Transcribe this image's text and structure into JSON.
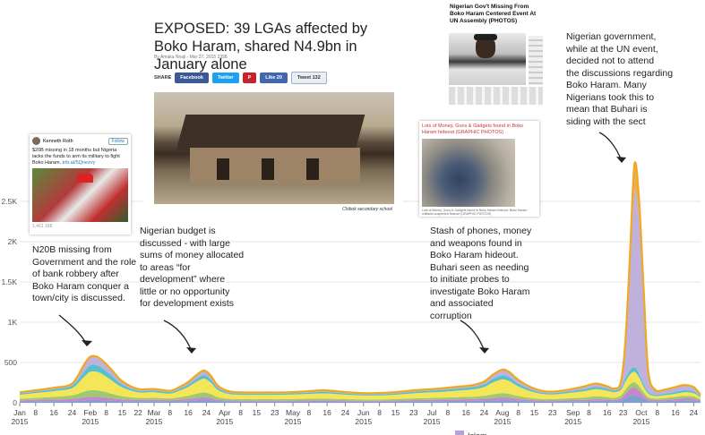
{
  "chart_data": {
    "type": "area",
    "stacked": true,
    "ylim": [
      0,
      3000
    ],
    "y_ticks": [
      {
        "value": 0,
        "label": "0"
      },
      {
        "value": 500,
        "label": "500"
      },
      {
        "value": 1000,
        "label": "1K"
      },
      {
        "value": 1500,
        "label": "1.5K"
      },
      {
        "value": 2000,
        "label": "2K"
      },
      {
        "value": 2500,
        "label": "2.5K"
      }
    ],
    "x_range": [
      "2015-01-01",
      "2015-10-27"
    ],
    "x_ticks": [
      {
        "date": "2015-01-01",
        "label": "Jan",
        "year": "2015"
      },
      {
        "date": "2015-01-08",
        "label": "8"
      },
      {
        "date": "2015-01-16",
        "label": "16"
      },
      {
        "date": "2015-01-24",
        "label": "24"
      },
      {
        "date": "2015-02-01",
        "label": "Feb",
        "year": "2015"
      },
      {
        "date": "2015-02-08",
        "label": "8"
      },
      {
        "date": "2015-02-15",
        "label": "15"
      },
      {
        "date": "2015-02-22",
        "label": "22"
      },
      {
        "date": "2015-03-01",
        "label": "Mar",
        "year": "2015"
      },
      {
        "date": "2015-03-08",
        "label": "8"
      },
      {
        "date": "2015-03-16",
        "label": "16"
      },
      {
        "date": "2015-03-24",
        "label": "24"
      },
      {
        "date": "2015-04-01",
        "label": "Apr",
        "year": "2015"
      },
      {
        "date": "2015-04-08",
        "label": "8"
      },
      {
        "date": "2015-04-15",
        "label": "15"
      },
      {
        "date": "2015-04-23",
        "label": "23"
      },
      {
        "date": "2015-05-01",
        "label": "May",
        "year": "2015"
      },
      {
        "date": "2015-05-08",
        "label": "8"
      },
      {
        "date": "2015-05-16",
        "label": "16"
      },
      {
        "date": "2015-05-24",
        "label": "24"
      },
      {
        "date": "2015-06-01",
        "label": "Jun",
        "year": "2015"
      },
      {
        "date": "2015-06-08",
        "label": "8"
      },
      {
        "date": "2015-06-15",
        "label": "15"
      },
      {
        "date": "2015-06-23",
        "label": "23"
      },
      {
        "date": "2015-07-01",
        "label": "Jul",
        "year": "2015"
      },
      {
        "date": "2015-07-08",
        "label": "8"
      },
      {
        "date": "2015-07-16",
        "label": "16"
      },
      {
        "date": "2015-07-24",
        "label": "24"
      },
      {
        "date": "2015-08-01",
        "label": "Aug",
        "year": "2015"
      },
      {
        "date": "2015-08-08",
        "label": "8"
      },
      {
        "date": "2015-08-15",
        "label": "15"
      },
      {
        "date": "2015-08-23",
        "label": "23"
      },
      {
        "date": "2015-09-01",
        "label": "Sep",
        "year": "2015"
      },
      {
        "date": "2015-09-08",
        "label": "8"
      },
      {
        "date": "2015-09-16",
        "label": "16"
      },
      {
        "date": "2015-09-23",
        "label": "23"
      },
      {
        "date": "2015-10-01",
        "label": "Oct",
        "year": "2015"
      },
      {
        "date": "2015-10-08",
        "label": "8"
      },
      {
        "date": "2015-10-16",
        "label": "16"
      },
      {
        "date": "2015-10-24",
        "label": "24"
      }
    ],
    "dates": [
      "2015-01-01",
      "2015-01-08",
      "2015-01-16",
      "2015-01-24",
      "2015-01-29",
      "2015-02-01",
      "2015-02-05",
      "2015-02-10",
      "2015-02-15",
      "2015-02-22",
      "2015-03-01",
      "2015-03-08",
      "2015-03-12",
      "2015-03-16",
      "2015-03-20",
      "2015-03-23",
      "2015-03-26",
      "2015-03-29",
      "2015-04-03",
      "2015-04-10",
      "2015-04-20",
      "2015-04-27",
      "2015-05-06",
      "2015-05-15",
      "2015-05-25",
      "2015-06-04",
      "2015-06-14",
      "2015-06-24",
      "2015-07-04",
      "2015-07-12",
      "2015-07-19",
      "2015-07-24",
      "2015-07-28",
      "2015-08-01",
      "2015-08-04",
      "2015-08-08",
      "2015-08-14",
      "2015-08-20",
      "2015-08-26",
      "2015-09-01",
      "2015-09-06",
      "2015-09-11",
      "2015-09-16",
      "2015-09-19",
      "2015-09-22",
      "2015-09-24",
      "2015-09-26",
      "2015-09-28",
      "2015-09-30",
      "2015-10-02",
      "2015-10-04",
      "2015-10-07",
      "2015-10-11",
      "2015-10-16",
      "2015-10-20",
      "2015-10-24",
      "2015-10-27"
    ],
    "series": [
      {
        "color": "#6b8ec7",
        "values": [
          15,
          18,
          20,
          22,
          30,
          35,
          34,
          25,
          20,
          18,
          18,
          16,
          20,
          25,
          32,
          36,
          30,
          20,
          15,
          14,
          14,
          14,
          15,
          16,
          14,
          13,
          14,
          18,
          20,
          22,
          24,
          26,
          30,
          34,
          32,
          25,
          18,
          15,
          16,
          18,
          20,
          25,
          22,
          20,
          30,
          60,
          90,
          100,
          80,
          50,
          25,
          18,
          20,
          25,
          30,
          28,
          15
        ]
      },
      {
        "color": "#c06fc5",
        "values": [
          15,
          18,
          20,
          25,
          35,
          40,
          38,
          30,
          22,
          18,
          18,
          16,
          18,
          22,
          28,
          30,
          26,
          18,
          14,
          12,
          12,
          12,
          13,
          14,
          12,
          11,
          12,
          15,
          18,
          20,
          22,
          25,
          30,
          34,
          30,
          22,
          15,
          12,
          13,
          15,
          16,
          20,
          18,
          16,
          25,
          50,
          80,
          90,
          70,
          40,
          20,
          15,
          16,
          20,
          25,
          22,
          12
        ]
      },
      {
        "color": "#8dbf5a",
        "values": [
          20,
          25,
          35,
          45,
          70,
          80,
          78,
          60,
          40,
          25,
          25,
          22,
          30,
          40,
          55,
          62,
          52,
          32,
          20,
          18,
          18,
          18,
          20,
          22,
          18,
          16,
          18,
          22,
          25,
          28,
          30,
          35,
          45,
          52,
          48,
          36,
          24,
          18,
          20,
          25,
          28,
          35,
          30,
          25,
          35,
          50,
          60,
          65,
          55,
          40,
          25,
          20,
          22,
          28,
          30,
          28,
          15
        ]
      },
      {
        "color": "#f2e23a",
        "values": [
          50,
          60,
          70,
          90,
          180,
          230,
          225,
          170,
          110,
          70,
          70,
          60,
          80,
          110,
          150,
          170,
          140,
          90,
          60,
          55,
          55,
          55,
          60,
          65,
          55,
          50,
          55,
          65,
          70,
          80,
          90,
          110,
          150,
          170,
          160,
          120,
          80,
          60,
          60,
          70,
          80,
          90,
          80,
          70,
          70,
          100,
          120,
          130,
          110,
          70,
          45,
          30,
          35,
          40,
          45,
          40,
          25
        ]
      },
      {
        "color": "#39b4c8",
        "values": [
          15,
          18,
          22,
          30,
          60,
          80,
          78,
          60,
          35,
          20,
          20,
          18,
          22,
          28,
          38,
          45,
          38,
          25,
          16,
          15,
          15,
          15,
          16,
          18,
          15,
          14,
          15,
          18,
          22,
          25,
          28,
          32,
          42,
          50,
          46,
          34,
          22,
          16,
          18,
          20,
          25,
          28,
          24,
          20,
          25,
          40,
          50,
          55,
          45,
          35,
          20,
          15,
          18,
          22,
          25,
          22,
          12
        ]
      },
      {
        "color": "#b4a3d6",
        "values": [
          10,
          12,
          15,
          20,
          75,
          95,
          90,
          65,
          35,
          15,
          15,
          12,
          18,
          25,
          40,
          45,
          38,
          22,
          12,
          10,
          10,
          10,
          12,
          14,
          12,
          10,
          12,
          14,
          16,
          18,
          20,
          28,
          45,
          60,
          55,
          40,
          22,
          14,
          14,
          20,
          28,
          35,
          25,
          20,
          60,
          400,
          1250,
          2180,
          1900,
          1100,
          250,
          60,
          45,
          55,
          60,
          50,
          15
        ]
      },
      {
        "color": "#e2a43a",
        "values": [
          5,
          5,
          5,
          5,
          10,
          12,
          12,
          10,
          6,
          5,
          5,
          5,
          6,
          8,
          10,
          12,
          10,
          6,
          5,
          5,
          5,
          5,
          5,
          5,
          5,
          5,
          5,
          5,
          5,
          5,
          6,
          8,
          10,
          12,
          10,
          8,
          6,
          5,
          5,
          5,
          6,
          6,
          6,
          5,
          10,
          60,
          170,
          340,
          260,
          90,
          15,
          6,
          5,
          5,
          5,
          5,
          5
        ]
      }
    ],
    "legend": [
      {
        "color": "#b4a3d6",
        "label": "Islam"
      }
    ]
  },
  "annotations": {
    "n20b": [
      "N20B missing  from",
      "Government  and the role",
      "of bank robbery after",
      "Boko Haram conquer a",
      "town/city is discussed."
    ],
    "budget": [
      "Nigerian budget is",
      "discussed  - with large",
      "sums of money allocated",
      "to areas “for",
      "development”  where",
      "little or no opportunity",
      "for development  exists"
    ],
    "stash": [
      "Stash of phones, money",
      "and weapons found  in",
      "Boko Haram hideout.",
      "Buhari seen as needing",
      "to initiate probes to",
      "investigate Boko Haram",
      "and associated",
      "corruption"
    ],
    "un": [
      "Nigerian government,",
      "while at the UN event,",
      "decided not to attend",
      "the discussions  regarding",
      "Boko Haram. Many",
      "Nigerians took this to",
      "mean that Buhari is",
      "siding with the sect"
    ]
  },
  "tweet": {
    "name": "Kenneth Roth",
    "follow": "Follow",
    "text": "$20B missing in 18 months but Nigeria lacks the funds to arm its military to fight Boko Haram.",
    "link": "trib.al/5Qnezvy",
    "footer": "1,461  168"
  },
  "article": {
    "title": "EXPOSED: 39 LGAs affected by Boko Haram, shared N4.9bn in January alone",
    "meta": "By Amaka Nnaji - Mar 27, 2015   2398",
    "share": "SHARE",
    "facebook": "Facebook",
    "twitter": "Twitter",
    "like": "Like  20",
    "tweet": "Tweet  132",
    "caption": "Chibok secondary school"
  },
  "un_article": {
    "title": "Nigerian Gov't Missing From Boko Haram Centered Event At UN Assembly (PHOTOS)"
  },
  "loot_article": {
    "title": "Lots of Money, Guns & Gadgets found in Boko Haram hideout (GRAPHIC PHOTOS)",
    "caption": "Lots of Money, Guns & Gadgets found in Boko Haram hideout. Boko Haram militants suspected hideout (GRAPHIC PHOTOS)"
  }
}
